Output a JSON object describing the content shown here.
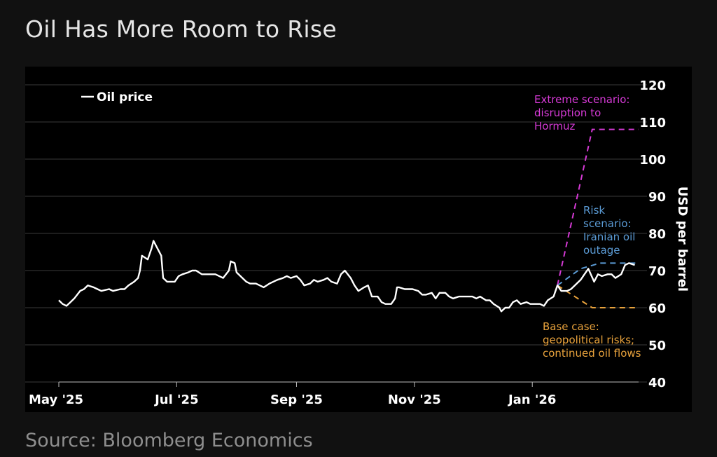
{
  "title": "Oil Has More Room to Rise",
  "source": "Source: Bloomberg Economics",
  "colors": {
    "background": "#111111",
    "plot_background": "#000000",
    "oil": "#ffffff",
    "extreme": "#d63ad6",
    "risk": "#5b9bd5",
    "base": "#e8a23c"
  },
  "chart_data": {
    "type": "line",
    "title": "Oil Has More Room to Rise",
    "ylabel": "USD per barrel",
    "ylim": [
      40,
      120
    ],
    "yticks": [
      40,
      50,
      60,
      70,
      80,
      90,
      100,
      110,
      120
    ],
    "grid": true,
    "legend": "top-left",
    "x_range": [
      "2025-05-01",
      "2026-02-25"
    ],
    "xticks": [
      {
        "date": "2025-05-01",
        "label": "May '25"
      },
      {
        "date": "2025-07-01",
        "label": "Jul '25"
      },
      {
        "date": "2025-09-01",
        "label": "Sep '25"
      },
      {
        "date": "2025-11-01",
        "label": "Nov '25"
      },
      {
        "date": "2026-01-01",
        "label": "Jan '26"
      }
    ],
    "series": [
      {
        "name": "Oil price",
        "style": "solid",
        "points": [
          [
            "2025-05-01",
            62
          ],
          [
            "2025-05-03",
            61
          ],
          [
            "2025-05-05",
            60.5
          ],
          [
            "2025-05-07",
            61.5
          ],
          [
            "2025-05-09",
            62.5
          ],
          [
            "2025-05-12",
            64.5
          ],
          [
            "2025-05-14",
            65
          ],
          [
            "2025-05-16",
            66
          ],
          [
            "2025-05-19",
            65.5
          ],
          [
            "2025-05-21",
            65
          ],
          [
            "2025-05-23",
            64.5
          ],
          [
            "2025-05-27",
            65
          ],
          [
            "2025-05-29",
            64.5
          ],
          [
            "2025-06-02",
            65
          ],
          [
            "2025-06-04",
            65
          ],
          [
            "2025-06-06",
            66
          ],
          [
            "2025-06-09",
            67
          ],
          [
            "2025-06-11",
            68
          ],
          [
            "2025-06-12",
            70
          ],
          [
            "2025-06-13",
            74
          ],
          [
            "2025-06-16",
            73
          ],
          [
            "2025-06-18",
            76
          ],
          [
            "2025-06-19",
            78
          ],
          [
            "2025-06-20",
            77
          ],
          [
            "2025-06-23",
            74
          ],
          [
            "2025-06-24",
            68
          ],
          [
            "2025-06-26",
            67
          ],
          [
            "2025-06-30",
            67
          ],
          [
            "2025-07-02",
            68.5
          ],
          [
            "2025-07-04",
            69
          ],
          [
            "2025-07-07",
            69.5
          ],
          [
            "2025-07-09",
            70
          ],
          [
            "2025-07-11",
            70
          ],
          [
            "2025-07-14",
            69
          ],
          [
            "2025-07-16",
            69
          ],
          [
            "2025-07-18",
            69
          ],
          [
            "2025-07-21",
            69
          ],
          [
            "2025-07-23",
            68.5
          ],
          [
            "2025-07-25",
            68
          ],
          [
            "2025-07-28",
            70
          ],
          [
            "2025-07-29",
            72.5
          ],
          [
            "2025-07-31",
            72
          ],
          [
            "2025-08-01",
            69.5
          ],
          [
            "2025-08-04",
            68
          ],
          [
            "2025-08-06",
            67
          ],
          [
            "2025-08-08",
            66.5
          ],
          [
            "2025-08-11",
            66.5
          ],
          [
            "2025-08-13",
            66
          ],
          [
            "2025-08-15",
            65.5
          ],
          [
            "2025-08-18",
            66.5
          ],
          [
            "2025-08-20",
            67
          ],
          [
            "2025-08-22",
            67.5
          ],
          [
            "2025-08-25",
            68
          ],
          [
            "2025-08-27",
            68.5
          ],
          [
            "2025-08-29",
            68
          ],
          [
            "2025-09-01",
            68.5
          ],
          [
            "2025-09-03",
            67.5
          ],
          [
            "2025-09-05",
            66
          ],
          [
            "2025-09-08",
            66.5
          ],
          [
            "2025-09-10",
            67.5
          ],
          [
            "2025-09-12",
            67
          ],
          [
            "2025-09-15",
            67.5
          ],
          [
            "2025-09-17",
            68
          ],
          [
            "2025-09-19",
            67
          ],
          [
            "2025-09-22",
            66.5
          ],
          [
            "2025-09-24",
            69
          ],
          [
            "2025-09-26",
            70
          ],
          [
            "2025-09-29",
            68
          ],
          [
            "2025-10-01",
            66
          ],
          [
            "2025-10-03",
            64.5
          ],
          [
            "2025-10-06",
            65.5
          ],
          [
            "2025-10-08",
            66
          ],
          [
            "2025-10-10",
            63
          ],
          [
            "2025-10-13",
            63
          ],
          [
            "2025-10-15",
            61.5
          ],
          [
            "2025-10-17",
            61
          ],
          [
            "2025-10-20",
            61
          ],
          [
            "2025-10-22",
            62.5
          ],
          [
            "2025-10-23",
            65.5
          ],
          [
            "2025-10-24",
            65.5
          ],
          [
            "2025-10-27",
            65
          ],
          [
            "2025-10-29",
            65
          ],
          [
            "2025-10-31",
            65
          ],
          [
            "2025-11-03",
            64.5
          ],
          [
            "2025-11-05",
            63.5
          ],
          [
            "2025-11-07",
            63.5
          ],
          [
            "2025-11-10",
            64
          ],
          [
            "2025-11-12",
            62.5
          ],
          [
            "2025-11-14",
            64
          ],
          [
            "2025-11-17",
            64
          ],
          [
            "2025-11-19",
            63
          ],
          [
            "2025-11-21",
            62.5
          ],
          [
            "2025-11-24",
            63
          ],
          [
            "2025-11-26",
            63
          ],
          [
            "2025-11-28",
            63
          ],
          [
            "2025-12-01",
            63
          ],
          [
            "2025-12-03",
            62.5
          ],
          [
            "2025-12-05",
            63
          ],
          [
            "2025-12-08",
            62
          ],
          [
            "2025-12-10",
            62
          ],
          [
            "2025-12-12",
            61
          ],
          [
            "2025-12-15",
            60
          ],
          [
            "2025-12-16",
            59
          ],
          [
            "2025-12-18",
            60
          ],
          [
            "2025-12-20",
            60
          ],
          [
            "2025-12-22",
            61.5
          ],
          [
            "2025-12-24",
            62
          ],
          [
            "2025-12-26",
            61
          ],
          [
            "2025-12-29",
            61.5
          ],
          [
            "2025-12-31",
            61
          ],
          [
            "2026-01-02",
            61
          ],
          [
            "2026-01-05",
            61
          ],
          [
            "2026-01-07",
            60.5
          ],
          [
            "2026-01-09",
            62
          ],
          [
            "2026-01-12",
            63
          ],
          [
            "2026-01-14",
            66
          ],
          [
            "2026-01-16",
            64.5
          ],
          [
            "2026-01-19",
            64.5
          ],
          [
            "2026-01-21",
            65
          ],
          [
            "2026-01-23",
            66
          ],
          [
            "2026-01-26",
            67.5
          ],
          [
            "2026-01-28",
            69
          ],
          [
            "2026-01-30",
            70.5
          ],
          [
            "2026-02-02",
            67
          ],
          [
            "2026-02-04",
            69
          ],
          [
            "2026-02-06",
            68.5
          ],
          [
            "2026-02-09",
            69
          ],
          [
            "2026-02-11",
            69
          ],
          [
            "2026-02-13",
            68
          ],
          [
            "2026-02-16",
            69
          ],
          [
            "2026-02-18",
            71.5
          ],
          [
            "2026-02-20",
            72
          ],
          [
            "2026-02-23",
            71.5
          ]
        ]
      },
      {
        "name": "",
        "style": "dashed",
        "color_key": "extreme",
        "points": [
          [
            "2026-01-14",
            66
          ],
          [
            "2026-02-01",
            108
          ],
          [
            "2026-02-25",
            108
          ]
        ]
      },
      {
        "name": "",
        "style": "dashed",
        "color_key": "risk",
        "points": [
          [
            "2026-01-14",
            66
          ],
          [
            "2026-01-26",
            70.5
          ],
          [
            "2026-02-05",
            72
          ],
          [
            "2026-02-25",
            72
          ]
        ]
      },
      {
        "name": "",
        "style": "dashed",
        "color_key": "base",
        "points": [
          [
            "2026-01-14",
            66
          ],
          [
            "2026-01-26",
            62
          ],
          [
            "2026-02-01",
            60
          ],
          [
            "2026-02-25",
            60
          ]
        ]
      }
    ],
    "annotations": [
      {
        "color_key": "extreme",
        "lines": [
          "Extreme scenario:",
          "disruption to",
          "Hormuz"
        ]
      },
      {
        "color_key": "risk",
        "lines": [
          "Risk",
          "scenario:",
          "Iranian oil",
          "outage"
        ]
      },
      {
        "color_key": "base",
        "lines": [
          "Base case:",
          "geopolitical risks;",
          "continued oil flows"
        ]
      }
    ]
  }
}
